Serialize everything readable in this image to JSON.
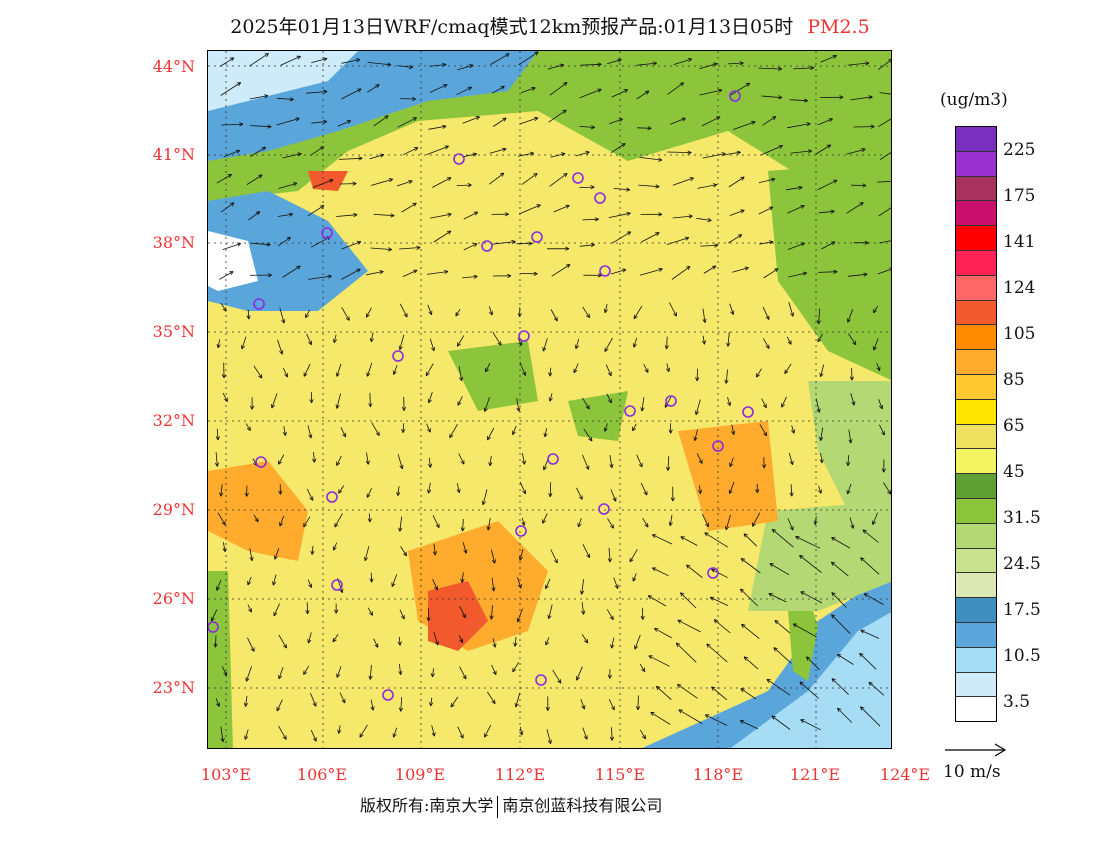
{
  "title": {
    "main": "2025年01月13日WRF/cmaq模式12km预报产品:01月13日05时",
    "pollutant": "PM2.5"
  },
  "legend": {
    "unit": "(ug/m3)",
    "values": [
      "225",
      "175",
      "141",
      "124",
      "105",
      "85",
      "65",
      "45",
      "31.5",
      "24.5",
      "17.5",
      "10.5",
      "3.5"
    ],
    "colors_top_to_bottom": [
      "#7b2fbf",
      "#9b30d0",
      "#a8325e",
      "#c8106c",
      "#ff0000",
      "#ff2255",
      "#ff6666",
      "#f25a2e",
      "#ff8c00",
      "#ffab2e",
      "#ffc82e",
      "#ffe600",
      "#f0e060",
      "#f3f560",
      "#5ea032",
      "#8cc43c",
      "#b4d873",
      "#c8e28e",
      "#dce8b4",
      "#3f8ec0",
      "#5aa6da",
      "#a6dcf4",
      "#cdebf8",
      "#ffffff"
    ]
  },
  "axes": {
    "lat_labels": [
      "44°N",
      "41°N",
      "38°N",
      "35°N",
      "32°N",
      "29°N",
      "26°N",
      "23°N"
    ],
    "lon_labels": [
      "103°E",
      "106°E",
      "109°E",
      "112°E",
      "115°E",
      "118°E",
      "121°E",
      "124°E"
    ]
  },
  "wind_reference": {
    "label": "10 m/s"
  },
  "footer": {
    "copyright": "版权所有:南京大学",
    "company": "南京创蓝科技有限公司"
  },
  "map_colors": {
    "background": "#f5e86a",
    "sea": "#5aa6da",
    "clean": "#8cc43c",
    "polluted": "#ffab2e",
    "heavy": "#f25a2e",
    "station": "#8a2be2"
  }
}
